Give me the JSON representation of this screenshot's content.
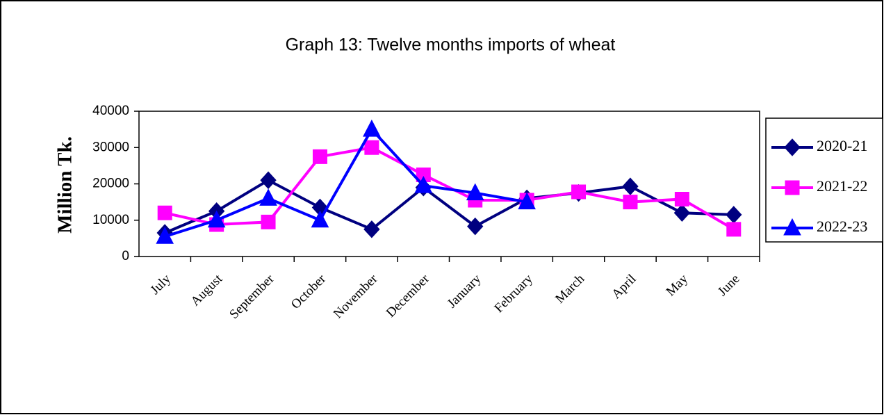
{
  "chart_data": {
    "type": "line",
    "title": "Graph 13: Twelve months imports of wheat",
    "y_label": "Million Tk.",
    "categories": [
      "July",
      "August",
      "September",
      "October",
      "November",
      "December",
      "January",
      "February",
      "March",
      "April",
      "May",
      "June"
    ],
    "series": [
      {
        "name": "2020-21",
        "color": "#000080",
        "marker": "diamond",
        "values": [
          6500,
          12500,
          21000,
          13500,
          7500,
          19000,
          8300,
          16000,
          17500,
          19300,
          12000,
          11500
        ]
      },
      {
        "name": "2021-22",
        "color": "#ff00ff",
        "marker": "square",
        "values": [
          12000,
          8800,
          9500,
          27500,
          30000,
          22500,
          15500,
          15500,
          17800,
          15000,
          15800,
          7500
        ]
      },
      {
        "name": "2022-23",
        "color": "#0000ff",
        "marker": "triangle",
        "values": [
          5500,
          10000,
          16000,
          10000,
          35000,
          19500,
          17500,
          15000,
          null,
          null,
          null,
          null
        ]
      }
    ],
    "ylim": [
      0,
      40000
    ],
    "yticks": [
      0,
      10000,
      20000,
      30000,
      40000
    ],
    "grid": false,
    "legend": "right"
  }
}
